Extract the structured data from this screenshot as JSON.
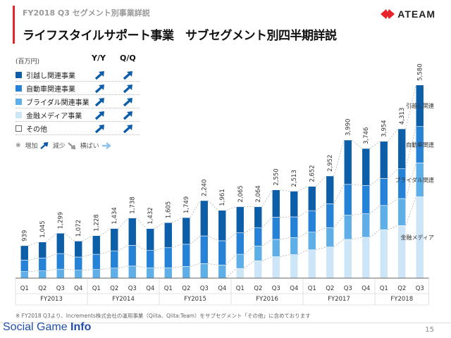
{
  "header": {
    "subtitle": "FY2018 Q3 セグメント別事業詳説",
    "title": "ライフスタイルサポート事業　サブセグメント別四半期詳説",
    "logo_text": "ATEAM",
    "accent_color": "#e8232b"
  },
  "legend": {
    "unit": "(百万円)",
    "yy_label": "Y/Y",
    "qq_label": "Q/Q",
    "items": [
      {
        "label": "引越し関連事業",
        "color": "#0c5ea8",
        "yy": "up-steep",
        "qq": "up-steep"
      },
      {
        "label": "自動車関連事業",
        "color": "#2582d6",
        "yy": "up-steep",
        "qq": "up-steep"
      },
      {
        "label": "ブライダル関連事業",
        "color": "#5eaee8",
        "yy": "up-steep",
        "qq": "up-steep"
      },
      {
        "label": "金融メディア事業",
        "color": "#cde6f7",
        "yy": "up-steep",
        "qq": "up-steep"
      },
      {
        "label": "その他",
        "color": "#ffffff",
        "yy": "up-steep",
        "qq": "up-steep"
      }
    ],
    "key_prefix": "※",
    "key_increase": "増加",
    "key_decrease": "減少",
    "key_flat": "横ばい"
  },
  "chart_data": {
    "type": "bar",
    "stacked": true,
    "categories": [
      "Q1",
      "Q2",
      "Q3",
      "Q4",
      "Q1",
      "Q2",
      "Q3",
      "Q4",
      "Q1",
      "Q2",
      "Q3",
      "Q4",
      "Q1",
      "Q2",
      "Q3",
      "Q4",
      "Q1",
      "Q2",
      "Q3",
      "Q4",
      "Q1",
      "Q2",
      "Q3"
    ],
    "fiscal_years": [
      {
        "label": "FY2013",
        "count": 4
      },
      {
        "label": "FY2014",
        "count": 4
      },
      {
        "label": "FY2015",
        "count": 4
      },
      {
        "label": "FY2016",
        "count": 4
      },
      {
        "label": "FY2017",
        "count": 4
      },
      {
        "label": "FY2018",
        "count": 3
      }
    ],
    "totals": [
      939,
      1045,
      1299,
      1072,
      1228,
      1434,
      1738,
      1432,
      1605,
      1749,
      2240,
      1961,
      2065,
      2064,
      2550,
      2513,
      2652,
      2952,
      3990,
      3746,
      3954,
      4313,
      5580
    ],
    "series": [
      {
        "name": "金融メディア",
        "color": "#cde6f7",
        "values": [
          0,
          0,
          0,
          0,
          0,
          0,
          0,
          0,
          0,
          0,
          0,
          0,
          280,
          500,
          620,
          680,
          820,
          900,
          1120,
          1180,
          1400,
          1520,
          2350
        ]
      },
      {
        "name": "ブライダル関連",
        "color": "#5eaee8",
        "values": [
          190,
          210,
          260,
          230,
          250,
          290,
          350,
          300,
          300,
          340,
          420,
          380,
          410,
          430,
          500,
          490,
          510,
          560,
          700,
          680,
          700,
          780,
          980
        ]
      },
      {
        "name": "自動車関連",
        "color": "#2582d6",
        "values": [
          330,
          370,
          450,
          380,
          440,
          500,
          600,
          500,
          580,
          640,
          800,
          700,
          620,
          530,
          640,
          600,
          620,
          690,
          890,
          820,
          780,
          860,
          1050
        ]
      },
      {
        "name": "引越し関連",
        "color": "#0c5ea8",
        "values": [
          419,
          465,
          589,
          462,
          538,
          644,
          788,
          632,
          725,
          769,
          1020,
          881,
          755,
          604,
          790,
          743,
          702,
          802,
          1280,
          1066,
          1074,
          1153,
          1200
        ]
      }
    ],
    "series_labels": [
      "引越し関連",
      "自動車関連",
      "ブライダル関連",
      "金融メディア"
    ],
    "ylim": [
      0,
      5900
    ],
    "grid": false
  },
  "footnote": "※ FY2018 Q3より、Increments株式会社の運用事業（Qiita、Qiita:Team）をサブセグメント「その他」に含めております",
  "watermark": {
    "part1": "Social Game ",
    "part2": "Info"
  },
  "page_number": "15"
}
